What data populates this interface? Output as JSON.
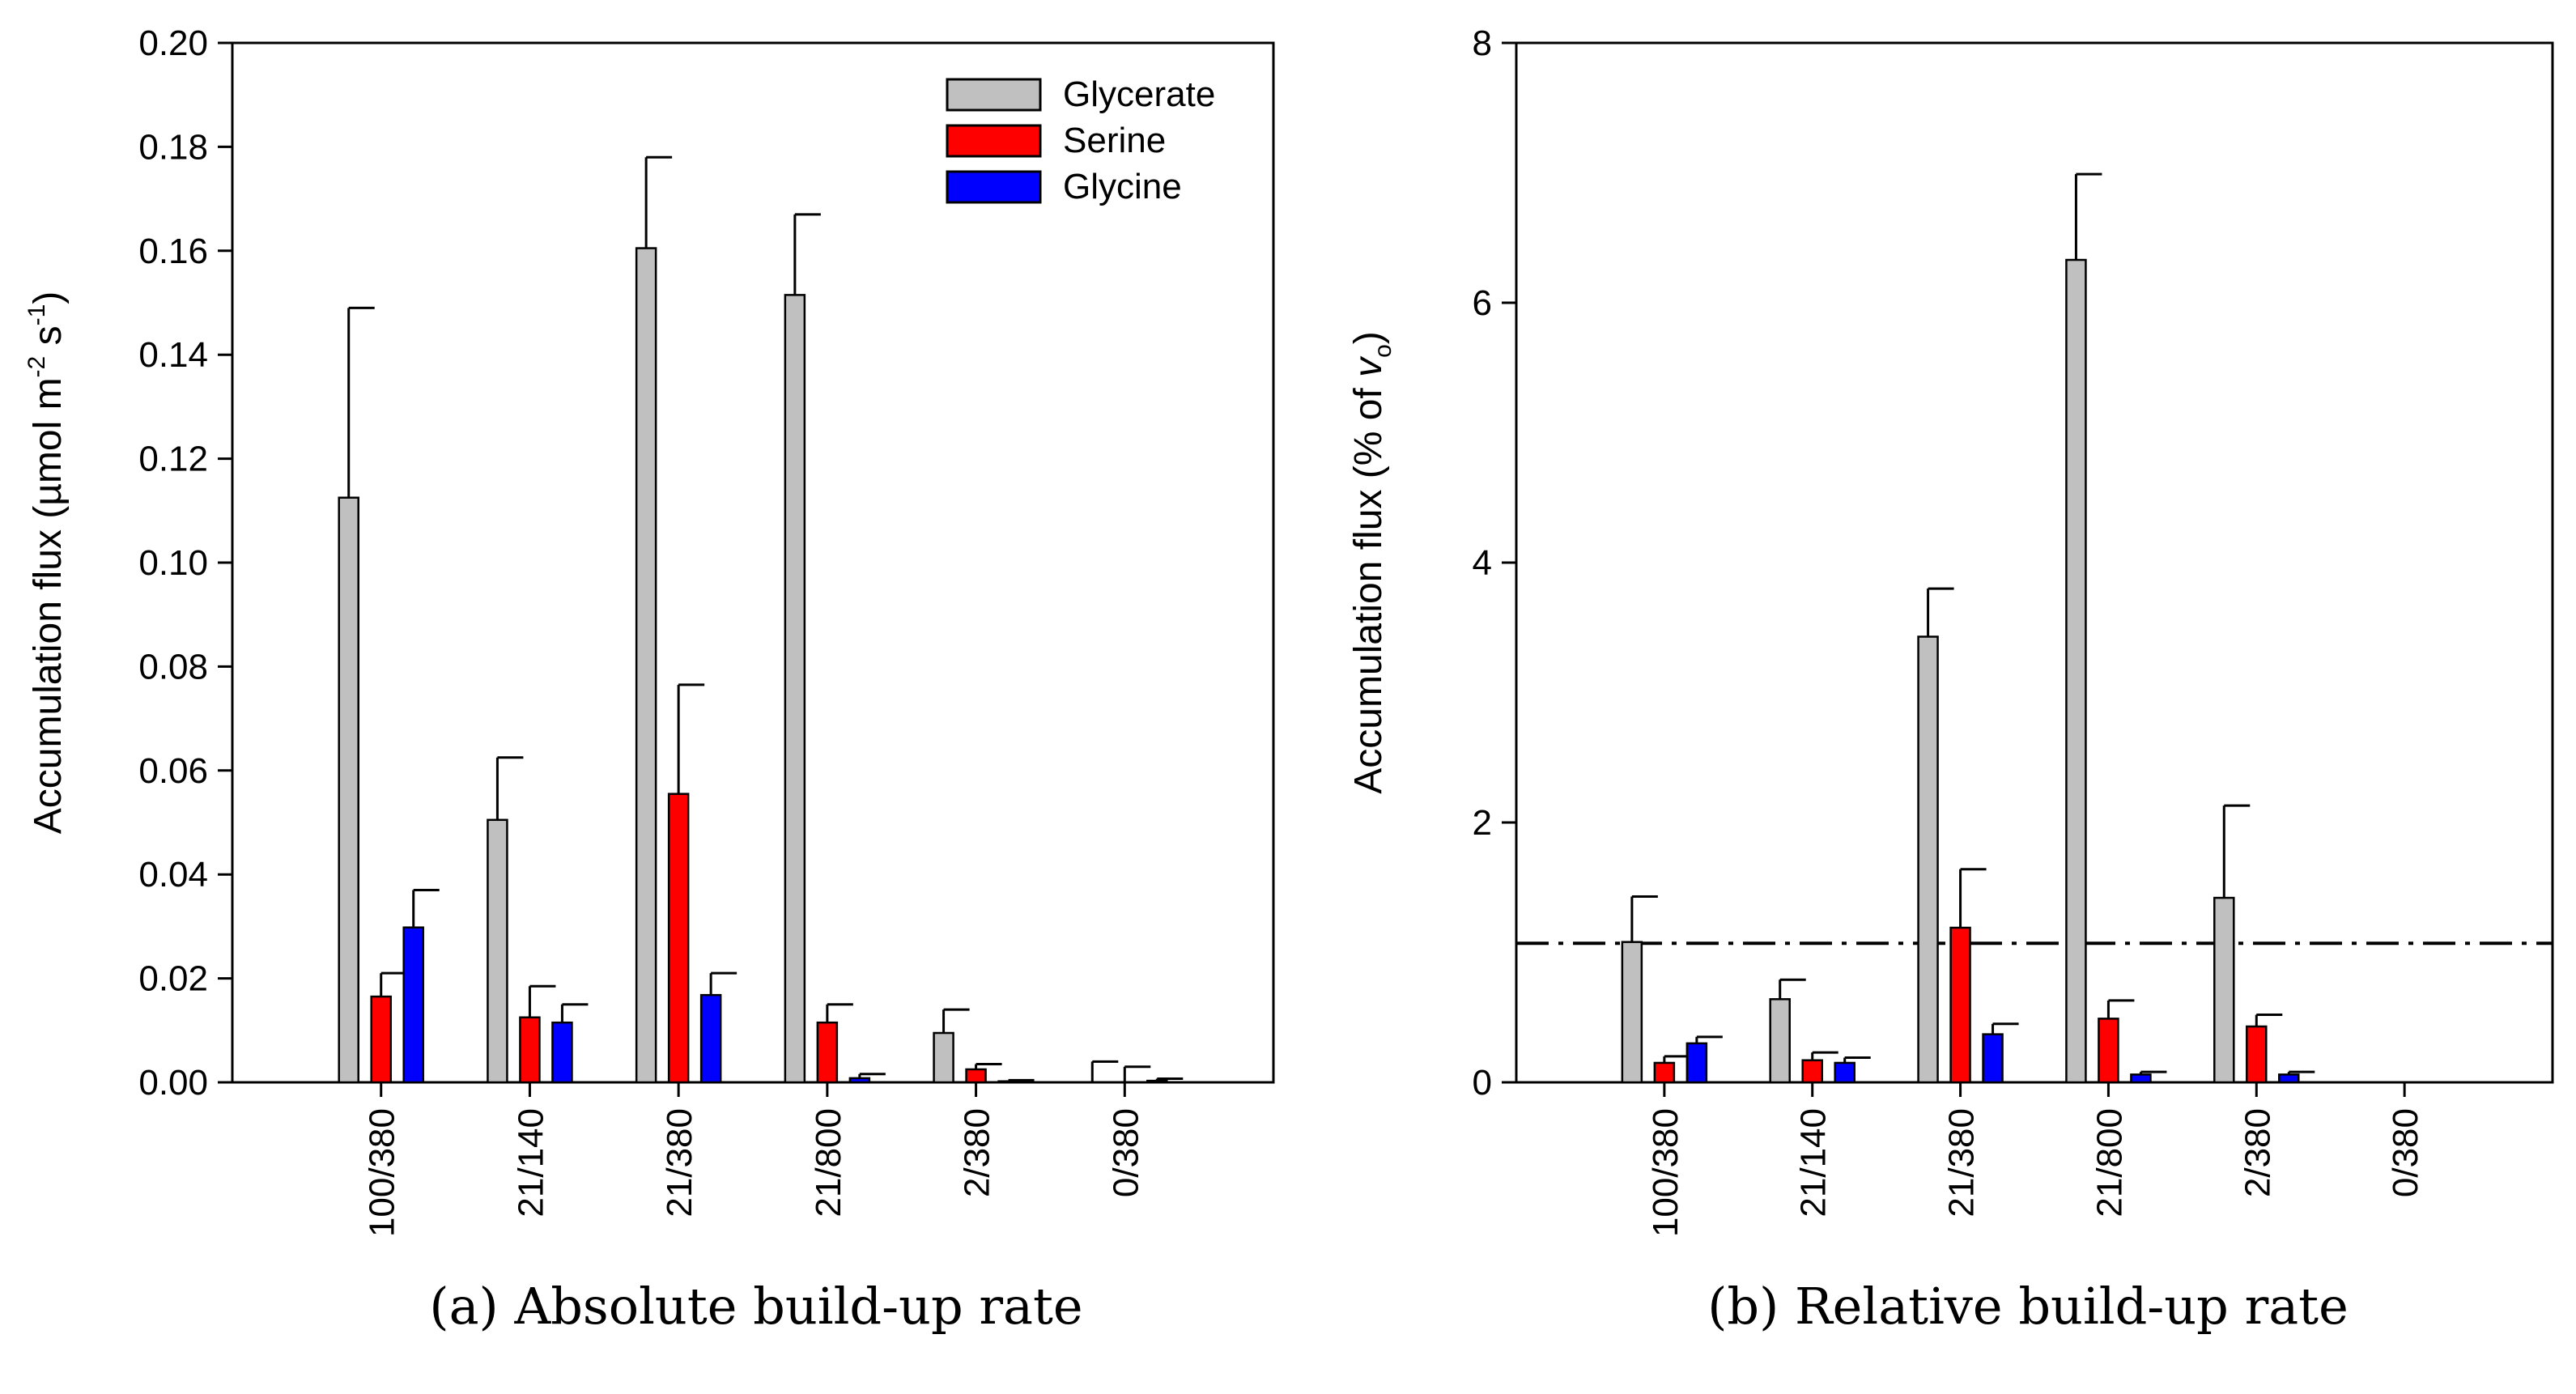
{
  "chart_data": [
    {
      "type": "bar",
      "title": "",
      "caption": "(a) Absolute build-up rate",
      "xlabel": "",
      "ylabel": {
        "text": "Accumulation flux (µmol m",
        "sup1": "-2",
        "mid": " s",
        "sup2": "-1",
        "end": ")"
      },
      "ylim": [
        0,
        0.2
      ],
      "yticks": [
        "0.00",
        "0.02",
        "0.04",
        "0.06",
        "0.08",
        "0.10",
        "0.12",
        "0.14",
        "0.16",
        "0.18",
        "0.20"
      ],
      "categories": [
        "100/380",
        "21/140",
        "21/380",
        "21/800",
        "2/380",
        "0/380"
      ],
      "legend": {
        "position": "top-right"
      },
      "grid": false,
      "series": [
        {
          "name": "Glycerate",
          "color": "#c0c0c0",
          "values": [
            0.1125,
            0.0505,
            0.1605,
            0.1515,
            0.0095,
            0.0
          ],
          "errors": [
            0.0365,
            0.012,
            0.0175,
            0.0155,
            0.0045,
            0.004
          ]
        },
        {
          "name": "Serine",
          "color": "#ff0000",
          "values": [
            0.0165,
            0.0125,
            0.0555,
            0.0115,
            0.0025,
            0.0
          ],
          "errors": [
            0.0045,
            0.006,
            0.021,
            0.0035,
            0.001,
            0.003
          ]
        },
        {
          "name": "Glycine",
          "color": "#0000ff",
          "values": [
            0.0298,
            0.0115,
            0.0168,
            0.0008,
            0.0002,
            0.0003
          ],
          "errors": [
            0.0072,
            0.0035,
            0.0042,
            0.0008,
            0.0002,
            0.0004
          ]
        }
      ]
    },
    {
      "type": "bar",
      "title": "",
      "caption": "(b) Relative build-up rate",
      "xlabel": "",
      "ylabel": {
        "text": "Accumulation flux (% of ",
        "var": "v",
        "sub": "o",
        "end": ")"
      },
      "ylim": [
        0,
        8
      ],
      "yticks": [
        "0",
        "2",
        "4",
        "6",
        "8"
      ],
      "categories": [
        "100/380",
        "21/140",
        "21/380",
        "21/800",
        "2/380",
        "0/380"
      ],
      "reference_line": 1.07,
      "legend": {
        "position": "none"
      },
      "grid": false,
      "series": [
        {
          "name": "Glycerate",
          "color": "#c0c0c0",
          "values": [
            1.08,
            0.64,
            3.43,
            6.33,
            1.42,
            0.0
          ],
          "errors": [
            0.35,
            0.15,
            0.37,
            0.66,
            0.71,
            0.0
          ]
        },
        {
          "name": "Serine",
          "color": "#ff0000",
          "values": [
            0.15,
            0.17,
            1.19,
            0.49,
            0.43,
            0.0
          ],
          "errors": [
            0.05,
            0.06,
            0.45,
            0.14,
            0.09,
            0.0
          ]
        },
        {
          "name": "Glycine",
          "color": "#0000ff",
          "values": [
            0.3,
            0.15,
            0.37,
            0.06,
            0.06,
            0.0
          ],
          "errors": [
            0.05,
            0.04,
            0.08,
            0.02,
            0.02,
            0.0
          ]
        }
      ]
    }
  ]
}
